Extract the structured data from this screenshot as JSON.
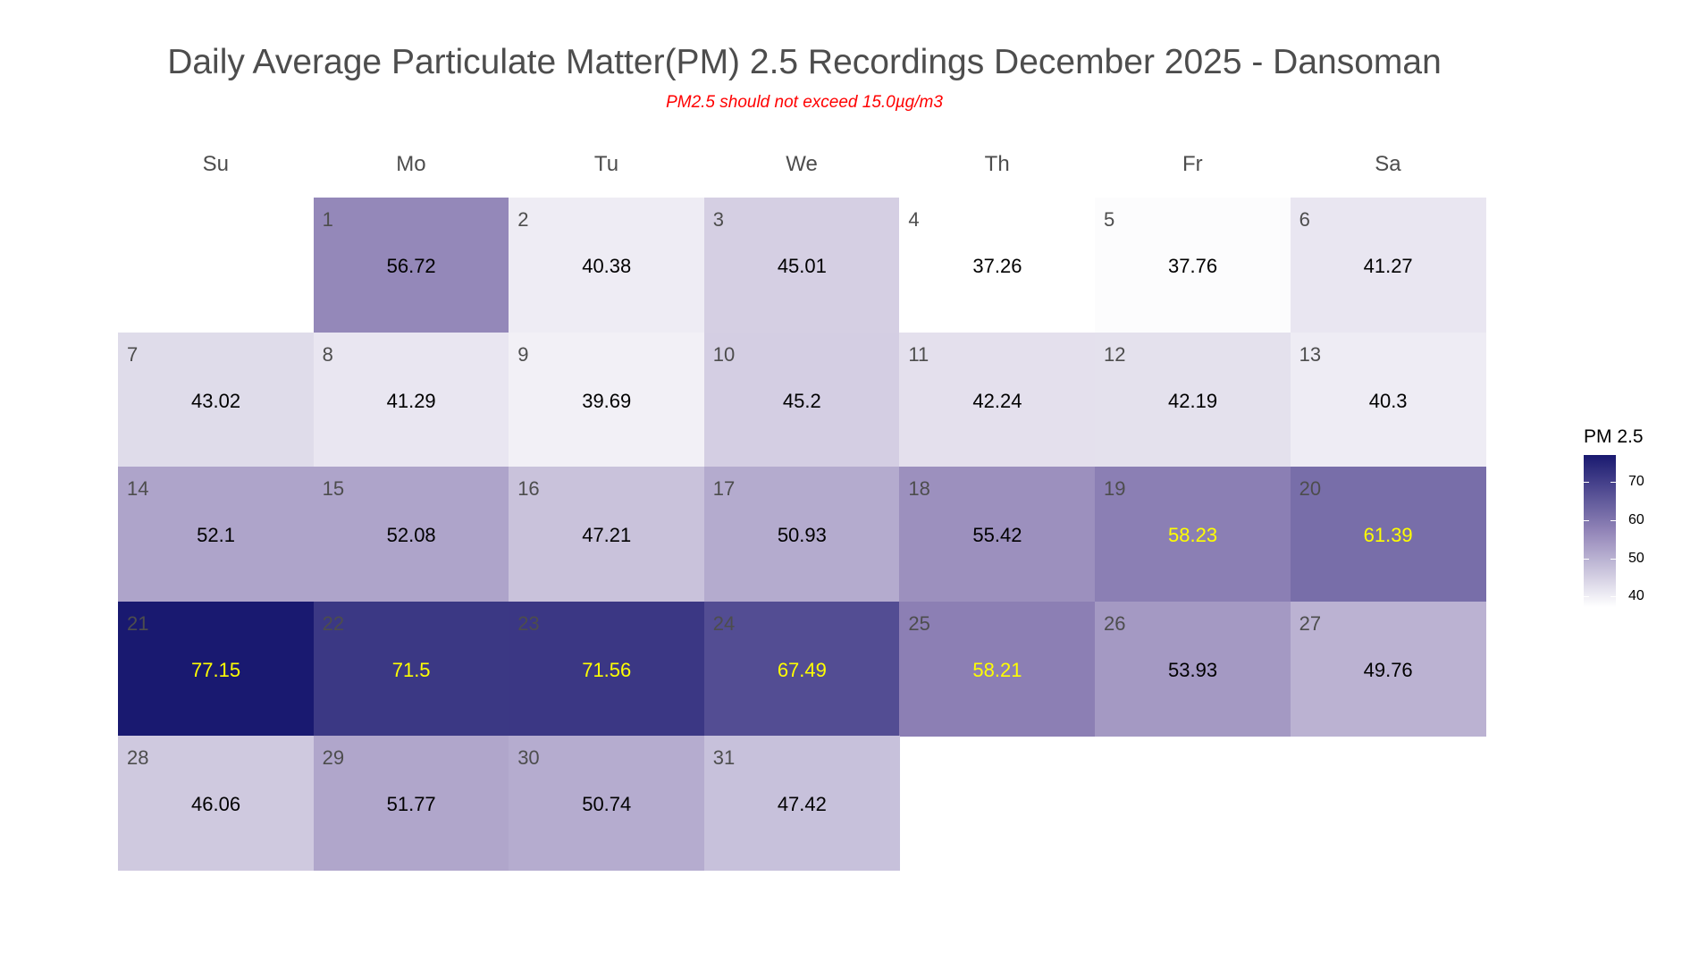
{
  "chart_data": {
    "type": "heatmap",
    "title": "Daily Average Particulate Matter(PM) 2.5 Recordings December 2025 -  Dansoman",
    "subtitle": "PM2.5 should not exceed 15.0µg/m3",
    "weekdays": [
      "Su",
      "Mo",
      "Tu",
      "We",
      "Th",
      "Fr",
      "Sa"
    ],
    "first_weekday_index": 1,
    "days": [
      {
        "day": "1",
        "value": 56.72
      },
      {
        "day": "2",
        "value": 40.38
      },
      {
        "day": "3",
        "value": 45.01
      },
      {
        "day": "4",
        "value": 37.26
      },
      {
        "day": "5",
        "value": 37.76
      },
      {
        "day": "6",
        "value": 41.27
      },
      {
        "day": "7",
        "value": 43.02
      },
      {
        "day": "8",
        "value": 41.29
      },
      {
        "day": "9",
        "value": 39.69
      },
      {
        "day": "10",
        "value": 45.2
      },
      {
        "day": "11",
        "value": 42.24
      },
      {
        "day": "12",
        "value": 42.19
      },
      {
        "day": "13",
        "value": 40.3
      },
      {
        "day": "14",
        "value": 52.1
      },
      {
        "day": "15",
        "value": 52.08
      },
      {
        "day": "16",
        "value": 47.21
      },
      {
        "day": "17",
        "value": 50.93
      },
      {
        "day": "18",
        "value": 55.42
      },
      {
        "day": "19",
        "value": 58.23
      },
      {
        "day": "20",
        "value": 61.39
      },
      {
        "day": "21",
        "value": 77.15
      },
      {
        "day": "22",
        "value": 71.5
      },
      {
        "day": "23",
        "value": 71.56
      },
      {
        "day": "24",
        "value": 67.49
      },
      {
        "day": "25",
        "value": 58.21
      },
      {
        "day": "26",
        "value": 53.93
      },
      {
        "day": "27",
        "value": 49.76
      },
      {
        "day": "28",
        "value": 46.06
      },
      {
        "day": "29",
        "value": 51.77
      },
      {
        "day": "30",
        "value": 50.74
      },
      {
        "day": "31",
        "value": 47.42
      }
    ],
    "legend": {
      "title": "PM 2.5",
      "ticks": [
        "40",
        "50",
        "60",
        "70"
      ],
      "range": [
        37.26,
        77.15
      ],
      "placement": "right"
    },
    "colors": {
      "low": "#ffffff",
      "mid": "#9487b9",
      "high": "#191970",
      "text_normal": "#000000",
      "text_high": "#ffff00",
      "title": "#4d4d4d",
      "subtitle": "#ff0000"
    },
    "highlight_threshold": 58
  }
}
